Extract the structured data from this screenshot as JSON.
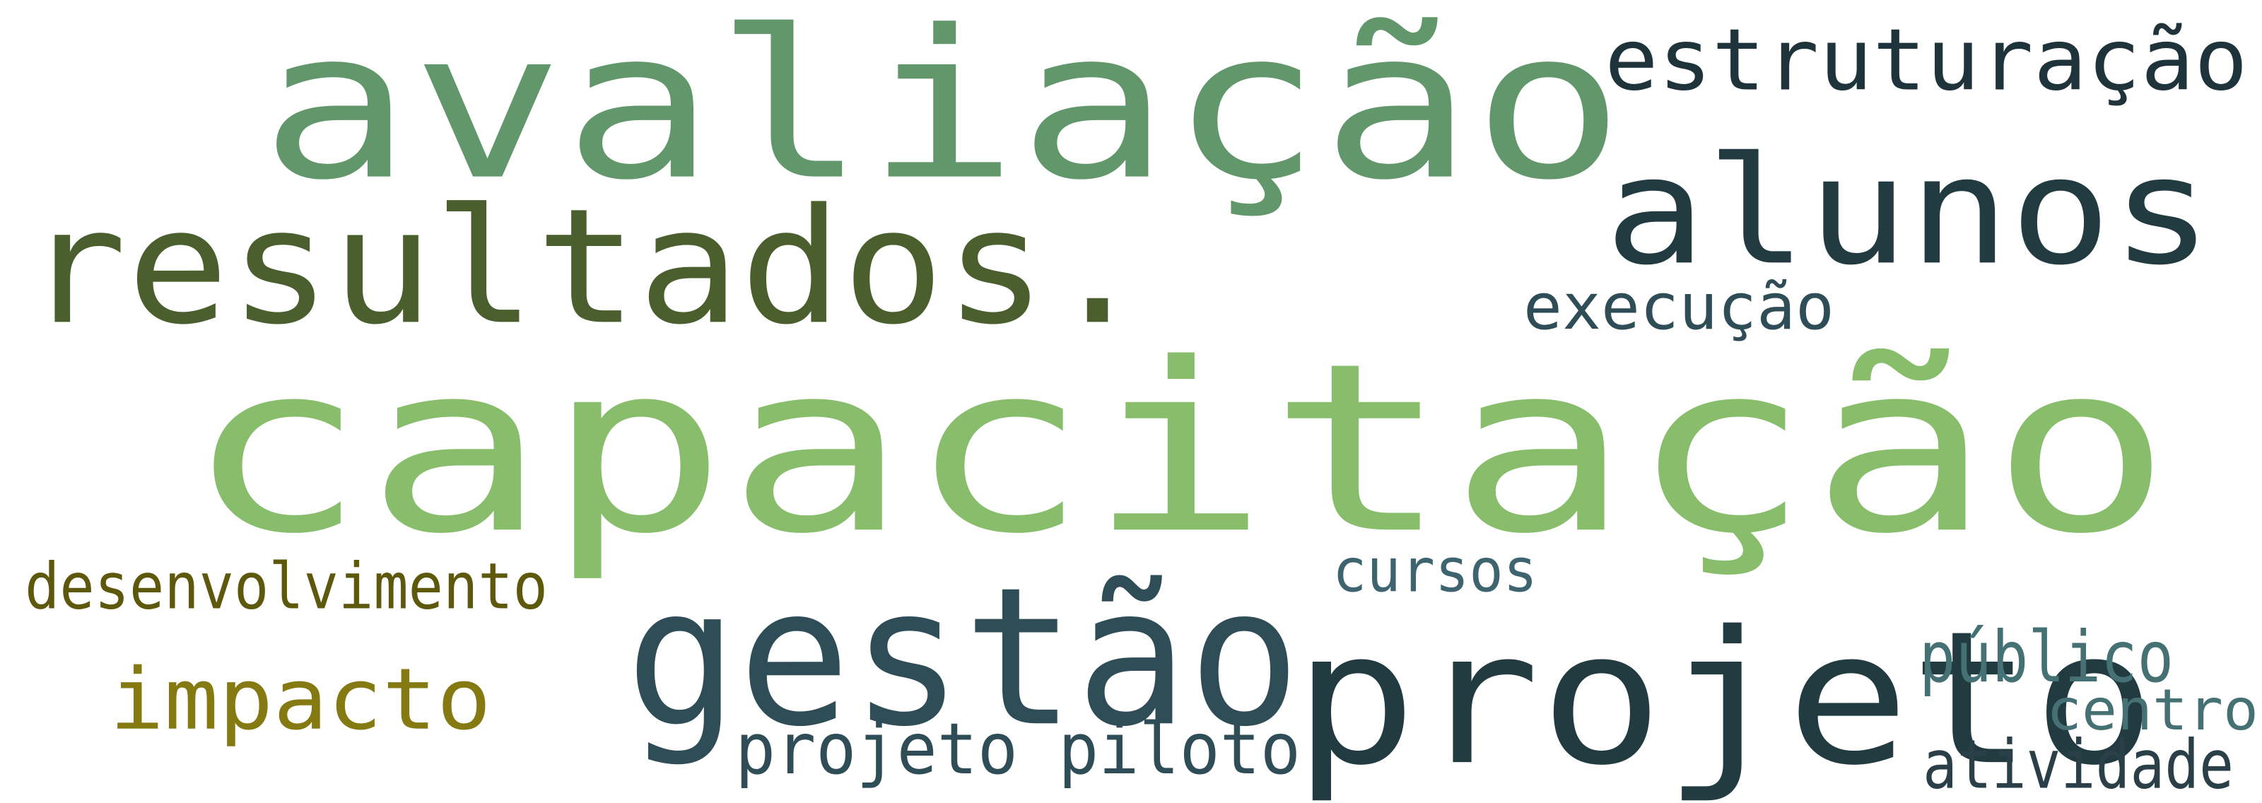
{
  "word_cloud": {
    "words": [
      {
        "key": "capacitacao",
        "text": "capacitação",
        "color": "#88bd6b"
      },
      {
        "key": "avaliacao",
        "text": "avaliação",
        "color": "#62976c"
      },
      {
        "key": "resultados",
        "text": "resultados.",
        "color": "#4a5e2e"
      },
      {
        "key": "alunos",
        "text": "alunos",
        "color": "#213b41"
      },
      {
        "key": "gestao",
        "text": "gestão",
        "color": "#2f4d57"
      },
      {
        "key": "projeto",
        "text": "projeto",
        "color": "#213b41"
      },
      {
        "key": "estruturacao",
        "text": "estruturação",
        "color": "#1f333b"
      },
      {
        "key": "impacto",
        "text": "impacto",
        "color": "#857a12"
      },
      {
        "key": "execucao",
        "text": "execução",
        "color": "#2f4d57"
      },
      {
        "key": "desenvolvimento",
        "text": "desenvolvimento",
        "color": "#5e580c"
      },
      {
        "key": "cursos",
        "text": "cursos",
        "color": "#3e6470"
      },
      {
        "key": "projeto_piloto",
        "text": "projeto piloto",
        "color": "#2f4d57"
      },
      {
        "key": "publico",
        "text": "público",
        "color": "#467174"
      },
      {
        "key": "centro",
        "text": "centro",
        "color": "#467174"
      },
      {
        "key": "atividade",
        "text": "atividade",
        "color": "#2a3f47"
      }
    ]
  }
}
